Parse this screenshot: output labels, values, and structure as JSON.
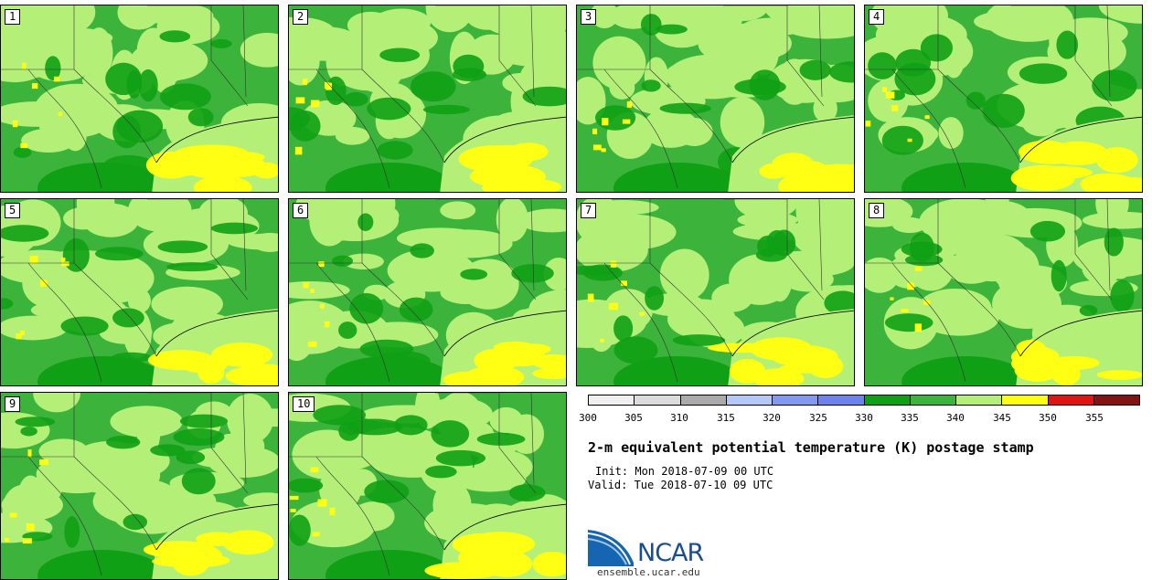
{
  "panels": [
    {
      "label": "1"
    },
    {
      "label": "2"
    },
    {
      "label": "3"
    },
    {
      "label": "4"
    },
    {
      "label": "5"
    },
    {
      "label": "6"
    },
    {
      "label": "7"
    },
    {
      "label": "8"
    },
    {
      "label": "9"
    },
    {
      "label": "10"
    }
  ],
  "colorbar": {
    "colors": [
      "#f0f0f0",
      "#dcdcdc",
      "#aaaaaa",
      "#b4c8f8",
      "#8299f2",
      "#6e82ef",
      "#0fa015",
      "#3cb43c",
      "#b4f078",
      "#ffff14",
      "#e11414",
      "#821414"
    ],
    "tick_labels": [
      "300",
      "305",
      "310",
      "315",
      "320",
      "325",
      "330",
      "335",
      "340",
      "345",
      "350",
      "355"
    ]
  },
  "title": "2-m equivalent potential temperature (K) postage stamp",
  "init": "Init: Mon 2018-07-09 00 UTC",
  "valid": "Valid: Tue 2018-07-10 09 UTC",
  "logo_text": "NCAR",
  "site": "ensemble.ucar.edu"
}
